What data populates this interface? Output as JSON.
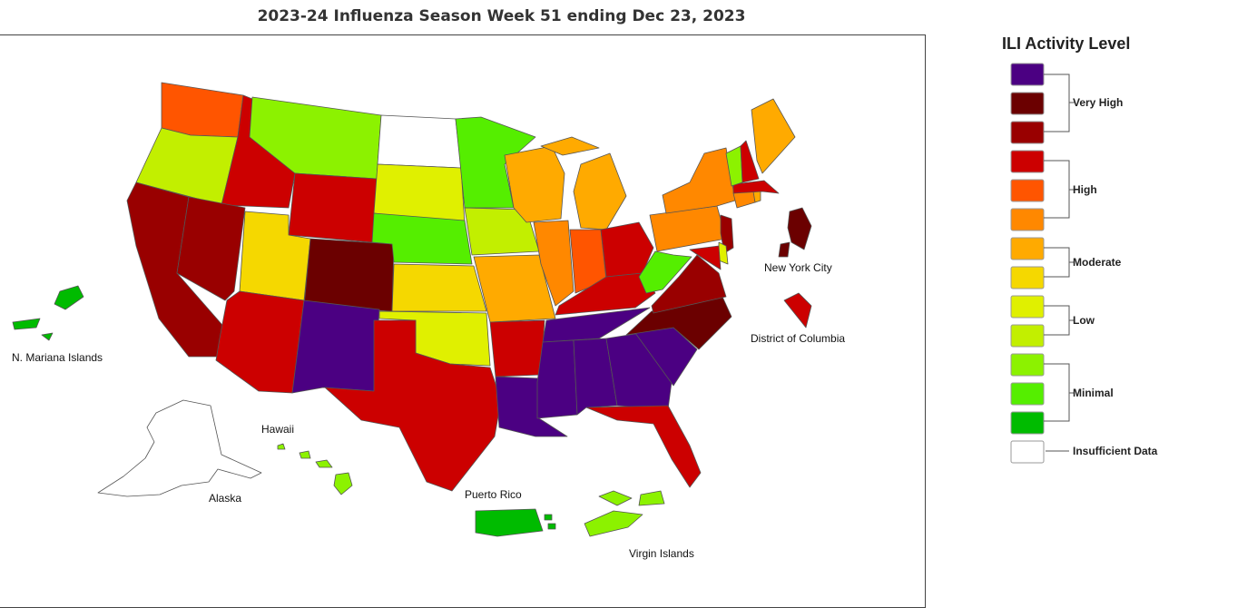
{
  "title": "2023-24 Influenza Season Week 51 ending Dec 23, 2023",
  "legend": {
    "title": "ILI Activity Level",
    "swatches": [
      {
        "level": "very-high-3",
        "color": "#4b0082"
      },
      {
        "level": "very-high-2",
        "color": "#6b0000"
      },
      {
        "level": "very-high-1",
        "color": "#990000"
      },
      {
        "level": "high-3",
        "color": "#cc0000"
      },
      {
        "level": "high-2",
        "color": "#ff5500"
      },
      {
        "level": "high-1",
        "color": "#ff8800"
      },
      {
        "level": "moderate-2",
        "color": "#ffaa00"
      },
      {
        "level": "moderate-1",
        "color": "#f5d800"
      },
      {
        "level": "low-2",
        "color": "#e0f000"
      },
      {
        "level": "low-1",
        "color": "#c2ef00"
      },
      {
        "level": "minimal-3",
        "color": "#8cf200"
      },
      {
        "level": "minimal-2",
        "color": "#55ee00"
      },
      {
        "level": "minimal-1",
        "color": "#00bb00"
      },
      {
        "level": "insufficient",
        "color": "#ffffff"
      }
    ],
    "groups": {
      "very_high": "Very High",
      "high": "High",
      "moderate": "Moderate",
      "low": "Low",
      "minimal": "Minimal",
      "insufficient": "Insufficient Data"
    }
  },
  "territory_labels": {
    "nyc": "New York City",
    "dc": "District of Columbia",
    "nmi": "N. Mariana Islands",
    "hawaii": "Hawaii",
    "alaska": "Alaska",
    "puerto_rico": "Puerto Rico",
    "virgin_islands": "Virgin Islands"
  }
}
